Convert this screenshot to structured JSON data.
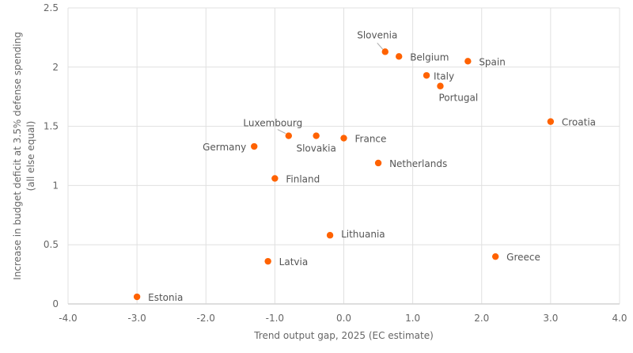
{
  "chart_data": {
    "type": "scatter",
    "title": "",
    "xlabel": "Trend output gap, 2025 (EC estimate)",
    "ylabel_lines": [
      "Increase in budget deficit at 3.5% defense spending",
      "(all else equal)"
    ],
    "xlim": [
      -4.0,
      4.0
    ],
    "ylim": [
      0,
      2.5
    ],
    "x_ticks": [
      "-4.0",
      "-3.0",
      "-2.0",
      "-1.0",
      "0.0",
      "1.0",
      "2.0",
      "3.0",
      "4.0"
    ],
    "y_ticks": [
      "0",
      "0.5",
      "1",
      "1.5",
      "2",
      "2.5"
    ],
    "grid": true,
    "marker_color": "#ff6200",
    "points": [
      {
        "label": "Estonia",
        "x": -3.0,
        "y": 0.06
      },
      {
        "label": "Latvia",
        "x": -1.1,
        "y": 0.36
      },
      {
        "label": "Lithuania",
        "x": -0.2,
        "y": 0.58
      },
      {
        "label": "Greece",
        "x": 2.2,
        "y": 0.4
      },
      {
        "label": "Finland",
        "x": -1.0,
        "y": 1.06
      },
      {
        "label": "Germany",
        "x": -1.3,
        "y": 1.33
      },
      {
        "label": "Luxembourg",
        "x": -0.8,
        "y": 1.42
      },
      {
        "label": "Slovakia",
        "x": -0.4,
        "y": 1.42
      },
      {
        "label": "France",
        "x": 0.0,
        "y": 1.4
      },
      {
        "label": "Netherlands",
        "x": 0.5,
        "y": 1.19
      },
      {
        "label": "Croatia",
        "x": 3.0,
        "y": 1.54
      },
      {
        "label": "Slovenia",
        "x": 0.6,
        "y": 2.13
      },
      {
        "label": "Belgium",
        "x": 0.8,
        "y": 2.09
      },
      {
        "label": "Spain",
        "x": 1.8,
        "y": 2.05
      },
      {
        "label": "Italy",
        "x": 1.2,
        "y": 1.93
      },
      {
        "label": "Portugal",
        "x": 1.4,
        "y": 1.84
      }
    ]
  }
}
